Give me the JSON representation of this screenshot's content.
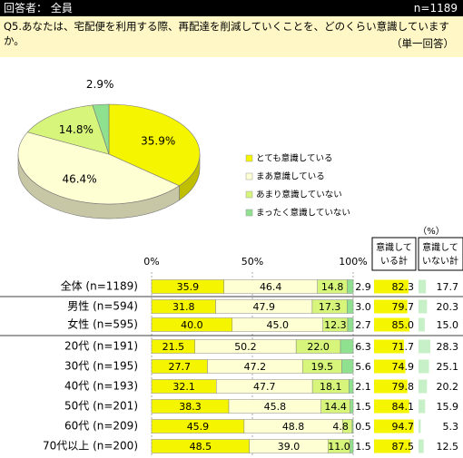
{
  "header": {
    "respondents": "回答者： 全員",
    "n": "n=1189"
  },
  "question": {
    "text": "Q5.あなたは、宅配便を利用する際、再配達を削減していくことを、どのくらい意識していますか。",
    "note": "（単一回答）"
  },
  "colors": {
    "very": "#f5f500",
    "somewhat": "#ffffd4",
    "not_much": "#d6f57a",
    "not_at_all": "#8fe08f",
    "sum_bar": "#f5f500",
    "not_sum_bar": "#c8f0c8"
  },
  "chart_data": [
    {
      "type": "pie",
      "labels": [
        "とても意識している",
        "まあ意識している",
        "あまり意識していない",
        "まったく意識していない"
      ],
      "values": [
        35.9,
        46.4,
        14.8,
        2.9
      ],
      "value_labels": [
        "35.9%",
        "46.4%",
        "14.8%",
        "2.9%"
      ]
    },
    {
      "type": "bar",
      "stacked": true,
      "orientation": "horizontal",
      "xlim": [
        0,
        100
      ],
      "ticks": [
        "0%",
        "50%",
        "100%"
      ],
      "categories": [
        "全体 (n=1189)",
        "男性 (n=594)",
        "女性 (n=595)",
        "20代 (n=191)",
        "30代 (n=195)",
        "40代 (n=193)",
        "50代 (n=201)",
        "60代 (n=209)",
        "70代以上 (n=200)"
      ],
      "series": [
        {
          "name": "とても意識している",
          "values": [
            35.9,
            31.8,
            40.0,
            21.5,
            27.7,
            32.1,
            38.3,
            45.9,
            48.5
          ],
          "labels": [
            "35.9",
            "31.8",
            "40.0",
            "21.5",
            "27.7",
            "32.1",
            "38.3",
            "45.9",
            "48.5"
          ]
        },
        {
          "name": "まあ意識している",
          "values": [
            46.4,
            47.9,
            45.0,
            50.2,
            47.2,
            47.7,
            45.8,
            48.8,
            39.0
          ],
          "labels": [
            "46.4",
            "47.9",
            "45.0",
            "50.2",
            "47.2",
            "47.7",
            "45.8",
            "48.8",
            "39.0"
          ]
        },
        {
          "name": "あまり意識していない",
          "values": [
            14.8,
            17.3,
            12.3,
            22.0,
            19.5,
            18.1,
            14.4,
            4.8,
            11.0
          ],
          "labels": [
            "14.8",
            "17.3",
            "12.3",
            "22.0",
            "19.5",
            "18.1",
            "14.4",
            "4.8",
            "11.0"
          ]
        },
        {
          "name": "まったく意識していない",
          "values": [
            2.9,
            3.0,
            2.7,
            6.3,
            5.6,
            2.1,
            1.5,
            0.5,
            1.5
          ],
          "labels": [
            "2.9",
            "3.0",
            "2.7",
            "6.3",
            "5.6",
            "2.1",
            "1.5",
            "0.5",
            "1.5"
          ]
        }
      ],
      "summary": {
        "unit": "（%）",
        "col1_header": [
          "意識して",
          "いる計"
        ],
        "col2_header": [
          "意識して",
          "いない計"
        ],
        "col1": [
          82.3,
          79.7,
          85.0,
          71.7,
          74.9,
          79.8,
          84.1,
          94.7,
          87.5
        ],
        "col1_labels": [
          "82.3",
          "79.7",
          "85.0",
          "71.7",
          "74.9",
          "79.8",
          "84.1",
          "94.7",
          "87.5"
        ],
        "col2": [
          17.7,
          20.3,
          15.0,
          28.3,
          25.1,
          20.2,
          15.9,
          5.3,
          12.5
        ],
        "col2_labels": [
          "17.7",
          "20.3",
          "15.0",
          "28.3",
          "25.1",
          "20.2",
          "15.9",
          "5.3",
          "12.5"
        ]
      }
    }
  ]
}
